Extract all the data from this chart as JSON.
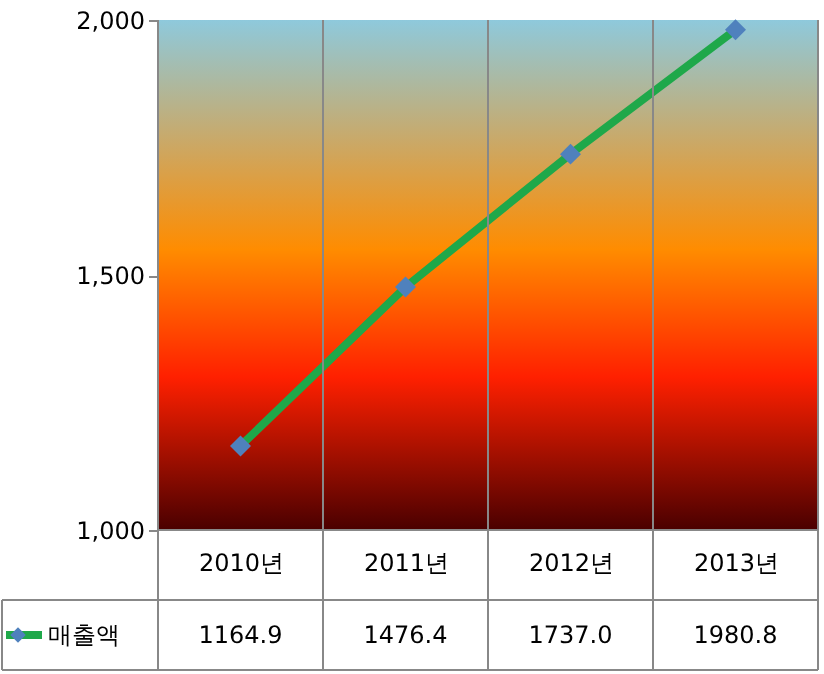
{
  "chart_data": {
    "type": "line",
    "categories": [
      "2010년",
      "2011년",
      "2012년",
      "2013년"
    ],
    "series": [
      {
        "name": "매출액",
        "color": "#1fa84a",
        "colors": [
          "#4f81bd",
          "#4f81bd",
          "#4f81bd",
          "#4f81bd"
        ],
        "values": [
          1164.9,
          1476.4,
          1737.0,
          1980.8
        ],
        "value_labels": [
          "1164.9",
          "1476.4",
          "1737.0",
          "1980.8"
        ]
      }
    ],
    "ylim": [
      1000,
      2000
    ],
    "yticks": [
      {
        "value": 1000,
        "label": "1,000"
      },
      {
        "value": 1500,
        "label": "1,500"
      },
      {
        "value": 2000,
        "label": "2,000"
      }
    ],
    "marker": "diamond",
    "line_style": "solid",
    "legend": "bottom left"
  }
}
